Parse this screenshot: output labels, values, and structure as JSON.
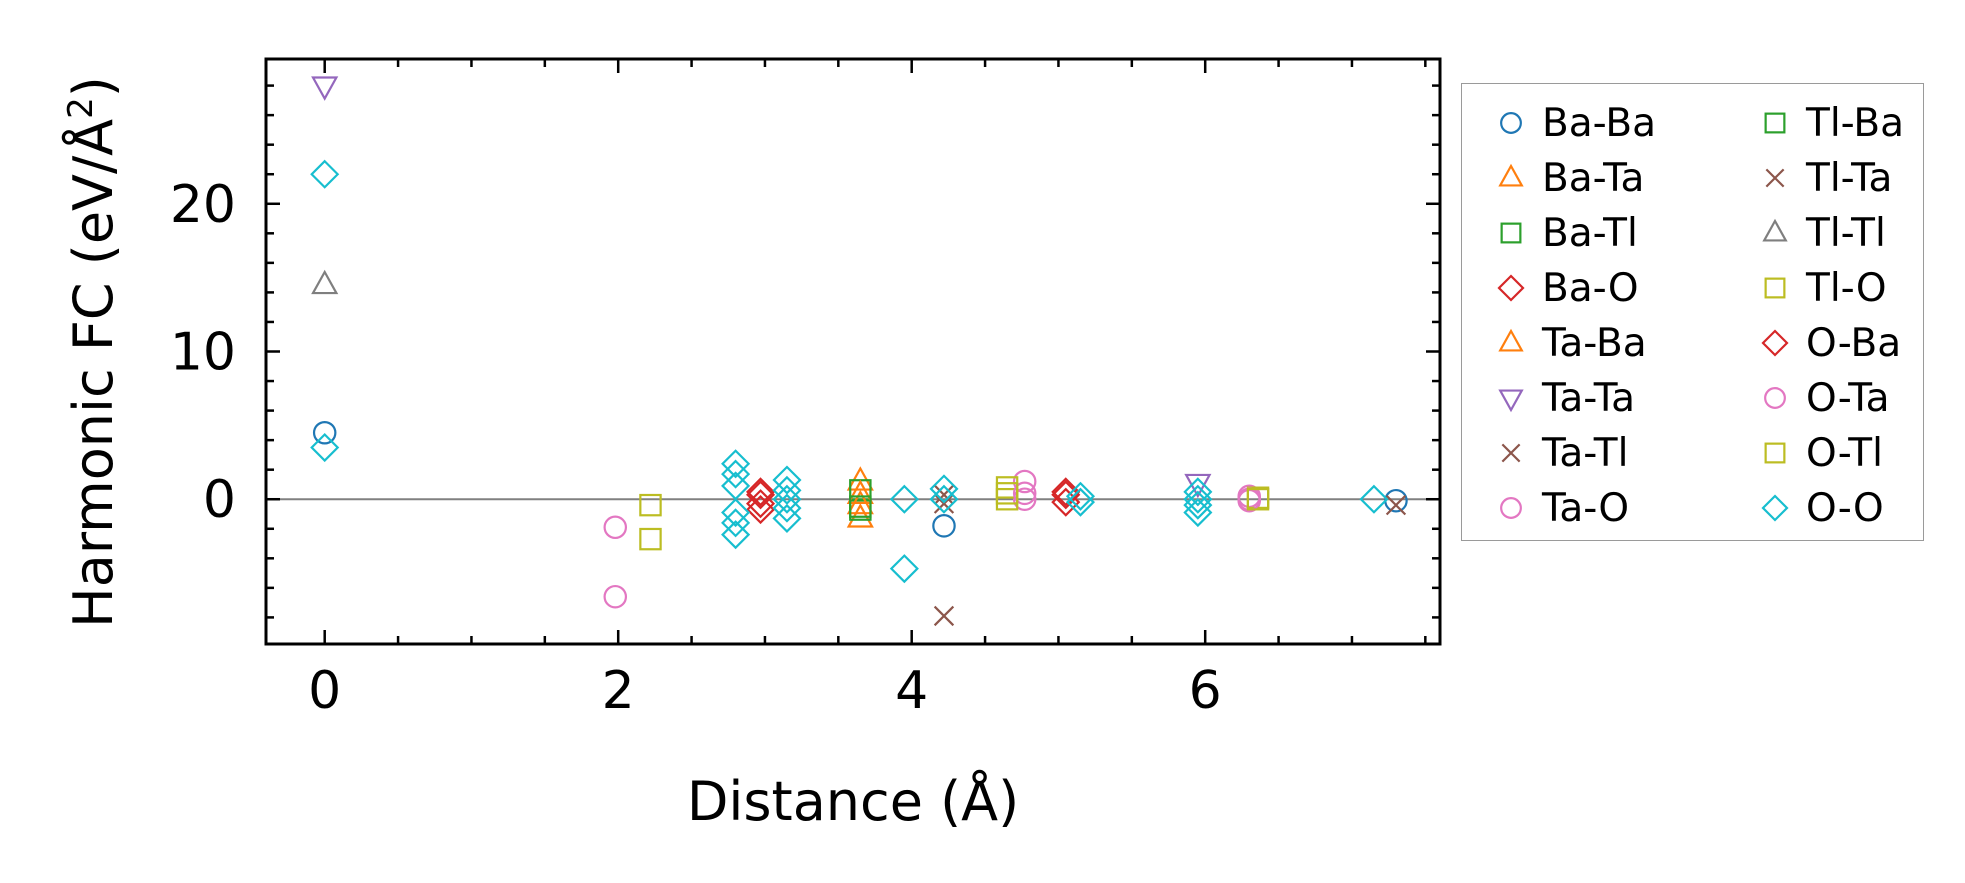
{
  "chart_data": {
    "type": "scatter",
    "title": "",
    "xlabel": "Distance (Å)",
    "ylabel": "Harmonic FC (eV/Å",
    "ylabel_superscript": "2",
    "ylabel_close": ")",
    "xlim": [
      -0.4,
      7.6
    ],
    "ylim": [
      -9.8,
      29.8
    ],
    "xticks": [
      0,
      2,
      4,
      6
    ],
    "xtick_labels": [
      "0",
      "2",
      "4",
      "6"
    ],
    "yticks": [
      0,
      10,
      20
    ],
    "ytick_labels": [
      "0",
      "10",
      "20"
    ],
    "zero_line": 0,
    "legend_position": "outside-right",
    "series": [
      {
        "name": "Ba-Ba",
        "marker": "circle",
        "color": "#1f77b4",
        "points": [
          [
            0,
            4.5
          ],
          [
            4.22,
            -1.8
          ],
          [
            7.3,
            -0.1
          ]
        ]
      },
      {
        "name": "Ba-Ta",
        "marker": "triangle-up",
        "color": "#ff7f0e",
        "points": [
          [
            3.65,
            1.2
          ],
          [
            3.65,
            -1.3
          ]
        ]
      },
      {
        "name": "Ba-Tl",
        "marker": "square",
        "color": "#2ca02c",
        "points": [
          [
            3.65,
            0.6
          ],
          [
            3.65,
            -0.7
          ]
        ]
      },
      {
        "name": "Ba-O",
        "marker": "diamond",
        "color": "#d62728",
        "points": [
          [
            2.97,
            0.5
          ],
          [
            2.97,
            -0.7
          ],
          [
            5.05,
            0.5
          ],
          [
            5.05,
            -0.2
          ]
        ]
      },
      {
        "name": "Ta-Ba",
        "marker": "triangle-up",
        "color": "#ff7f0e",
        "points": [
          [
            3.65,
            0.3
          ],
          [
            3.65,
            -0.4
          ]
        ]
      },
      {
        "name": "Ta-Ta",
        "marker": "triangle-down",
        "color": "#9467bd",
        "points": [
          [
            0,
            28
          ],
          [
            5.95,
            1.1
          ]
        ]
      },
      {
        "name": "Ta-Tl",
        "marker": "x",
        "color": "#8c564b",
        "points": [
          [
            4.22,
            -7.9
          ],
          [
            4.22,
            0.3
          ],
          [
            7.3,
            -0.4
          ]
        ]
      },
      {
        "name": "Ta-O",
        "marker": "circle",
        "color": "#e377c2",
        "points": [
          [
            1.98,
            -1.9
          ],
          [
            1.98,
            -6.6
          ],
          [
            4.77,
            1.2
          ],
          [
            4.77,
            0.0
          ],
          [
            6.3,
            0.2
          ],
          [
            6.3,
            -0.1
          ]
        ]
      },
      {
        "name": "Tl-Ba",
        "marker": "square",
        "color": "#2ca02c",
        "points": [
          [
            3.65,
            -0.5
          ]
        ]
      },
      {
        "name": "Tl-Ta",
        "marker": "x",
        "color": "#8c564b",
        "points": [
          [
            4.22,
            -0.3
          ]
        ]
      },
      {
        "name": "Tl-Tl",
        "marker": "triangle-up",
        "color": "#7f7f7f",
        "points": [
          [
            0,
            14.5
          ]
        ]
      },
      {
        "name": "Tl-O",
        "marker": "square",
        "color": "#bcbd22",
        "points": [
          [
            2.22,
            -0.4
          ],
          [
            2.22,
            -2.7
          ],
          [
            4.65,
            0.8
          ],
          [
            4.65,
            0.0
          ],
          [
            6.36,
            0.1
          ]
        ]
      },
      {
        "name": "O-Ba",
        "marker": "diamond",
        "color": "#d62728",
        "points": [
          [
            2.97,
            0.3
          ],
          [
            2.97,
            -0.3
          ],
          [
            5.05,
            0.3
          ]
        ]
      },
      {
        "name": "O-Ta",
        "marker": "circle",
        "color": "#e377c2",
        "points": [
          [
            4.77,
            0.4
          ],
          [
            6.3,
            0.0
          ]
        ]
      },
      {
        "name": "O-Tl",
        "marker": "square",
        "color": "#bcbd22",
        "points": [
          [
            4.65,
            0.4
          ],
          [
            6.36,
            0.0
          ]
        ]
      },
      {
        "name": "O-O",
        "marker": "diamond",
        "color": "#17becf",
        "points": [
          [
            0,
            22
          ],
          [
            0,
            3.5
          ],
          [
            2.8,
            2.4
          ],
          [
            2.8,
            1.7
          ],
          [
            2.8,
            0.9
          ],
          [
            2.8,
            -0.9
          ],
          [
            2.8,
            -1.6
          ],
          [
            2.8,
            -2.4
          ],
          [
            3.15,
            1.3
          ],
          [
            3.15,
            0.6
          ],
          [
            3.15,
            0.0
          ],
          [
            3.15,
            -0.6
          ],
          [
            3.15,
            -1.3
          ],
          [
            3.95,
            0.0
          ],
          [
            3.95,
            -4.7
          ],
          [
            4.22,
            0.7
          ],
          [
            4.22,
            0.0
          ],
          [
            5.15,
            0.2
          ],
          [
            5.15,
            -0.2
          ],
          [
            5.95,
            0.5
          ],
          [
            5.95,
            0.0
          ],
          [
            5.95,
            -0.4
          ],
          [
            5.95,
            -0.9
          ],
          [
            7.15,
            0.0
          ]
        ]
      }
    ]
  }
}
